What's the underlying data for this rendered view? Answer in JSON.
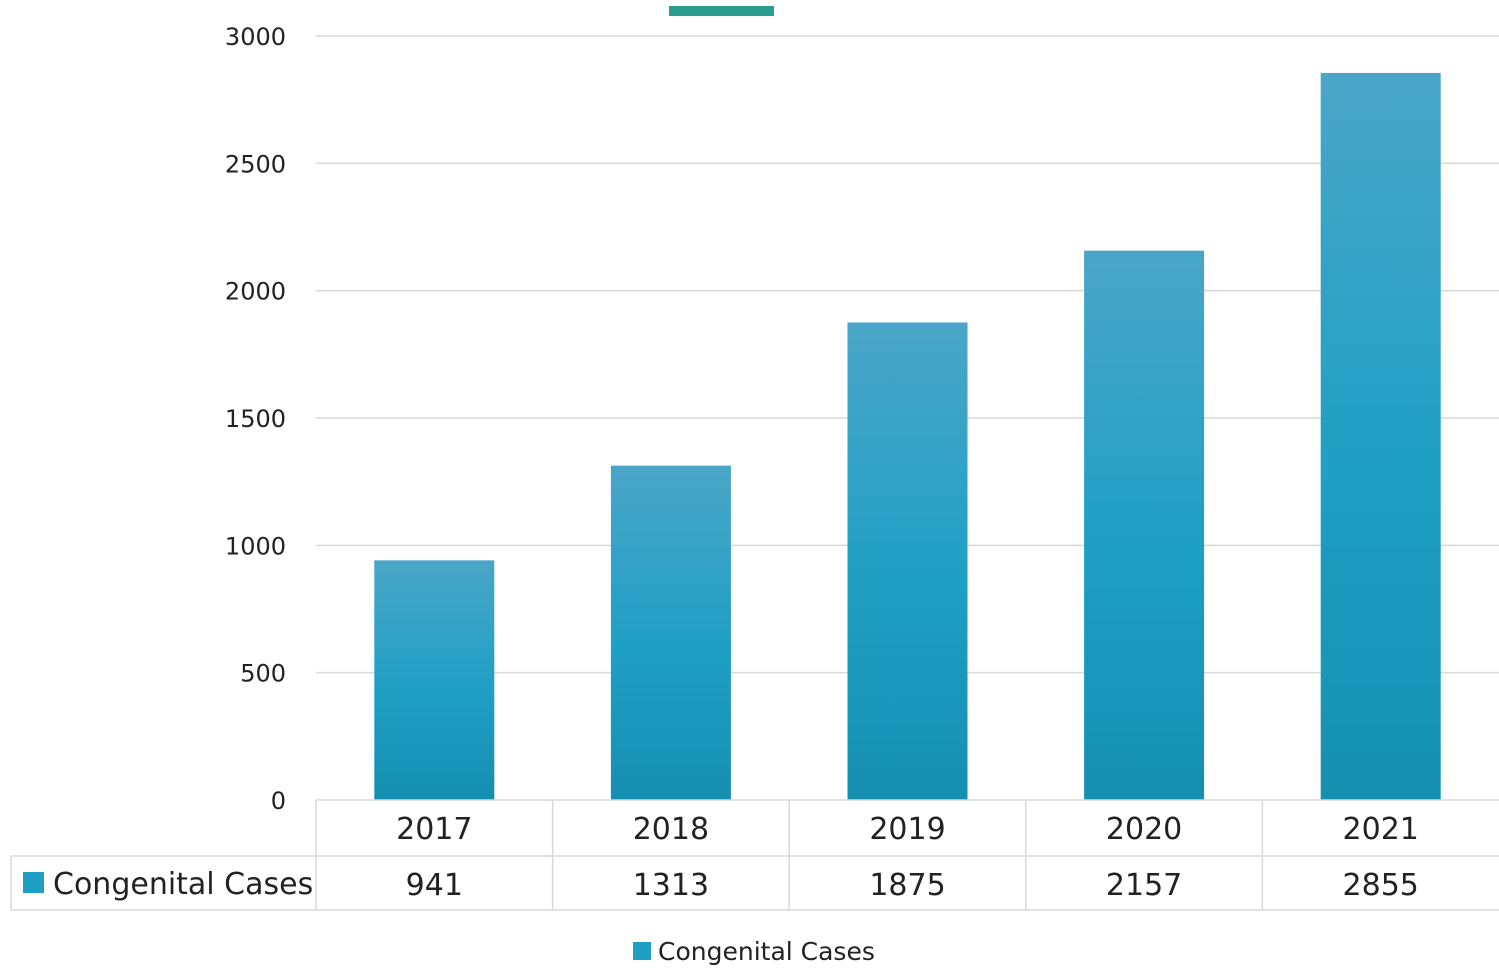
{
  "chart_data": {
    "type": "bar",
    "categories": [
      "2017",
      "2018",
      "2019",
      "2020",
      "2021"
    ],
    "series": [
      {
        "name": "Congenital Cases",
        "values": [
          941,
          1313,
          1875,
          2157,
          2855
        ],
        "color": "#1e9fc4"
      }
    ],
    "ylim": [
      0,
      3000
    ],
    "yticks": [
      0,
      500,
      1000,
      1500,
      2000,
      2500,
      3000
    ],
    "grid": true,
    "data_table": true,
    "legend_position": "bottom",
    "accent_color": "#2a9d8f"
  }
}
